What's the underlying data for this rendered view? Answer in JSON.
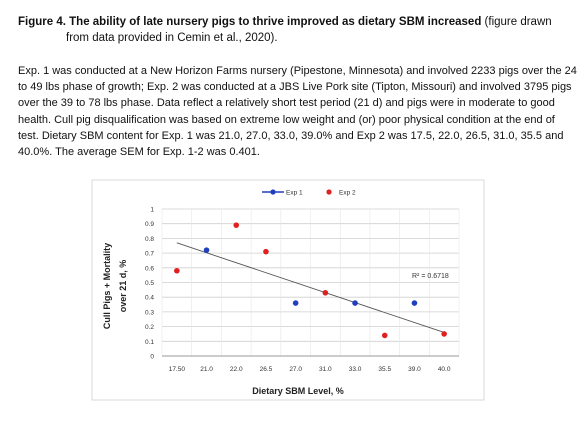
{
  "figure": {
    "label": "Figure 4.",
    "title_bold": "The ability of late nursery pigs to thrive improved as dietary SBM increased",
    "title_rest_a": " (figure drawn",
    "title_rest_b": "from data provided in Cemin et al., 2020)."
  },
  "description": "Exp. 1 was conducted at a New Horizon Farms nursery (Pipestone, Minnesota) and involved 2233 pigs over the 24 to 49 lbs phase of growth; Exp. 2 was conducted at a JBS Live Pork site (Tipton, Missouri) and involved 3795 pigs over the 39 to 78 lbs phase. Data reflect a relatively short test period (21 d) and pigs were in moderate to good health. Cull pig disqualification was based on extreme low weight and (or) poor physical condition at the end of test. Dietary SBM content for Exp. 1 was 21.0, 27.0, 33.0, 39.0% and Exp 2 was 17.5, 22.0, 26.5, 31.0, 35.5 and 40.0%.  The average SEM for Exp. 1-2 was 0.401.",
  "chart_data": {
    "type": "scatter",
    "xlabel": "Dietary SBM Level, %",
    "ylabel_line1": "Cull Pigs + Mortality",
    "ylabel_line2": "over 21 d, %",
    "categories": [
      "17.50",
      "21.0",
      "22.0",
      "26.5",
      "27.0",
      "31.0",
      "33.0",
      "35.5",
      "39.0",
      "40.0"
    ],
    "ylim": [
      0,
      1
    ],
    "yticks": [
      "0",
      "0.1",
      "0.2",
      "0.3",
      "0.4",
      "0.5",
      "0.6",
      "0.7",
      "0.8",
      "0.9",
      "1"
    ],
    "grid": true,
    "legend_position": "top",
    "series": [
      {
        "name": "Exp 1",
        "color": "#1f3fbf",
        "line_in_legend": true,
        "points": [
          {
            "x": "21.0",
            "y": 0.72
          },
          {
            "x": "27.0",
            "y": 0.36
          },
          {
            "x": "33.0",
            "y": 0.36
          },
          {
            "x": "39.0",
            "y": 0.36
          }
        ]
      },
      {
        "name": "Exp 2",
        "color": "#e02020",
        "line_in_legend": false,
        "points": [
          {
            "x": "17.50",
            "y": 0.58
          },
          {
            "x": "22.0",
            "y": 0.89
          },
          {
            "x": "26.5",
            "y": 0.71
          },
          {
            "x": "31.0",
            "y": 0.43
          },
          {
            "x": "35.5",
            "y": 0.14
          },
          {
            "x": "40.0",
            "y": 0.15
          }
        ]
      }
    ],
    "trendline": {
      "start": {
        "x": "17.50",
        "y": 0.77
      },
      "end": {
        "x": "40.0",
        "y": 0.16
      },
      "color": "#555555"
    },
    "annotation": "R² = 0.6718"
  }
}
